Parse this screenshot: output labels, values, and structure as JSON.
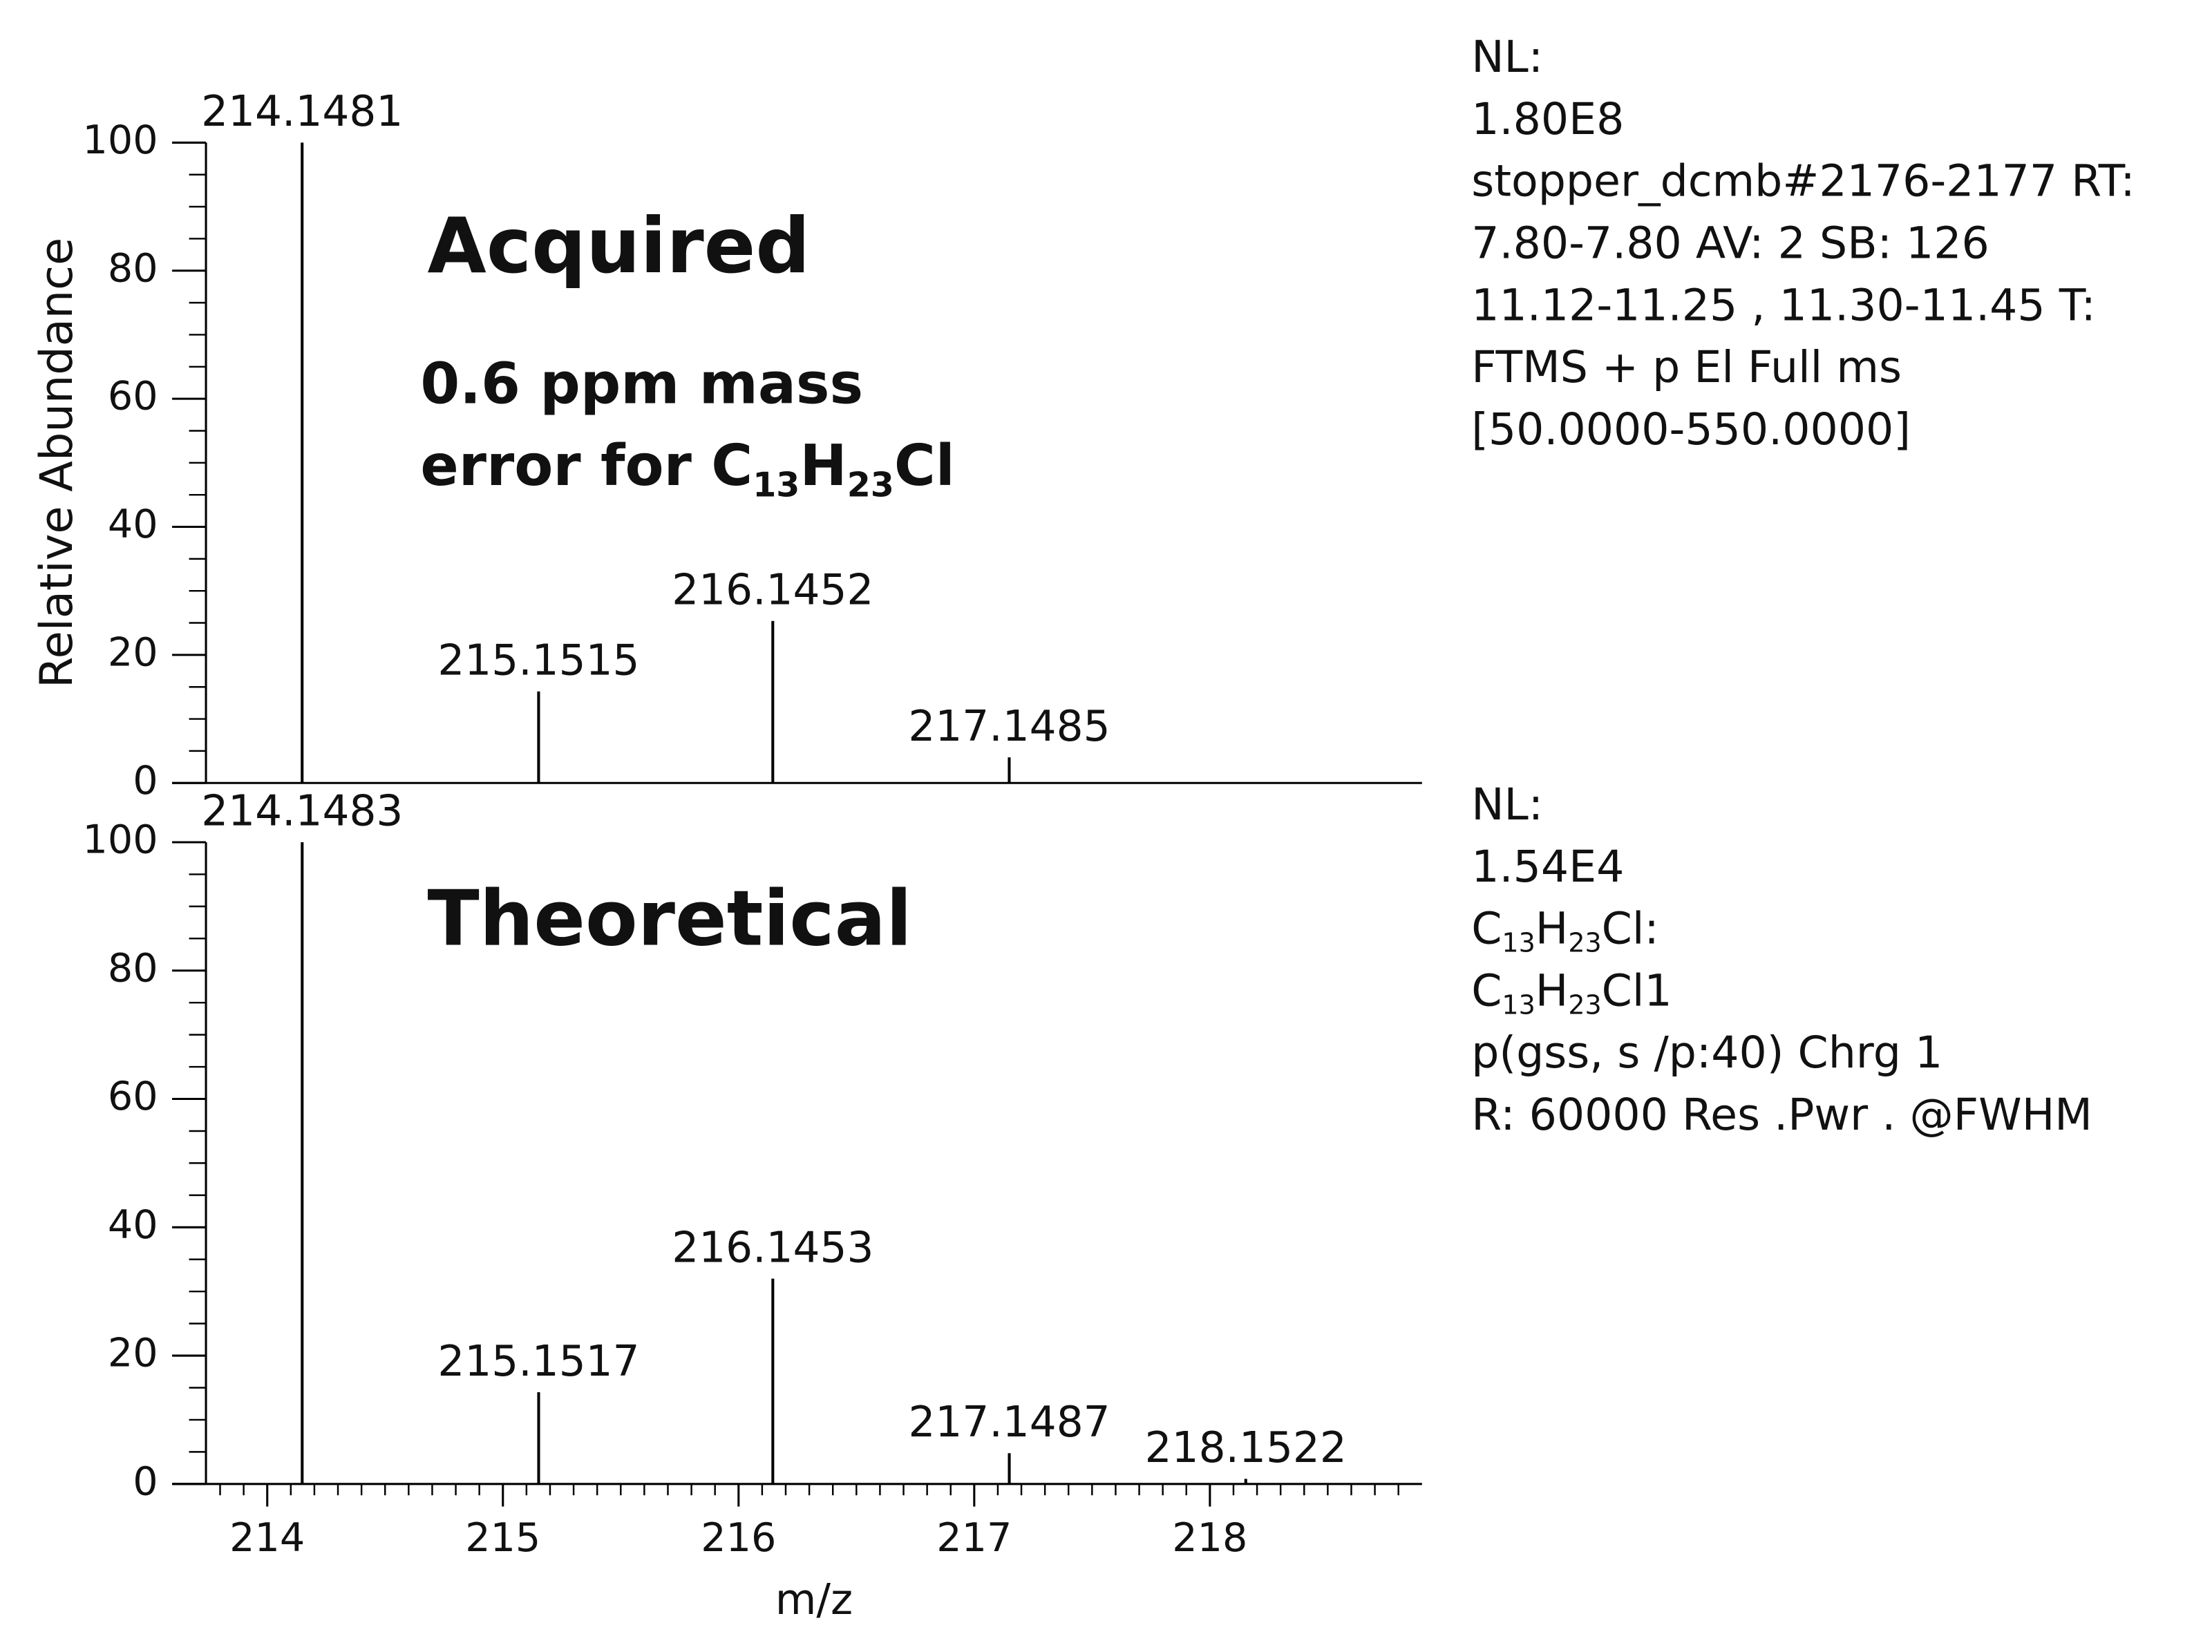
{
  "chart_data": [
    {
      "type": "bar",
      "title": "Acquired",
      "annotation": [
        [
          {
            "text": "0.6 ppm mass"
          }
        ],
        [
          {
            "text": "error for C"
          },
          {
            "sub": "13"
          },
          {
            "text": "H"
          },
          {
            "sub": "23"
          },
          {
            "text": "Cl"
          }
        ]
      ],
      "info": [
        [
          {
            "text": "NL:"
          }
        ],
        [
          {
            "text": "1.80E8"
          }
        ],
        [
          {
            "text": "stopper_dcmb#2176-2177 RT:"
          }
        ],
        [
          {
            "text": "7.80-7.80 AV: 2 SB: 126"
          }
        ],
        [
          {
            "text": "11.12-11.25 , 11.30-11.45 T:"
          }
        ],
        [
          {
            "text": "FTMS + p El Full ms"
          }
        ],
        [
          {
            "text": "[50.0000-550.0000]"
          }
        ]
      ],
      "ylabel": "Relative Abundance",
      "x": [
        214.1481,
        215.1515,
        216.1452,
        217.1485
      ],
      "values": [
        100,
        14.3,
        25.3,
        4
      ],
      "color": "#000000",
      "xlim": [
        213.74,
        218.9
      ],
      "ylim": [
        0,
        100
      ],
      "yticks": [
        0,
        20,
        40,
        60,
        80,
        100
      ],
      "yminorticks": [
        5,
        10,
        15,
        25,
        30,
        35,
        45,
        50,
        55,
        65,
        70,
        75,
        85,
        90,
        95
      ]
    },
    {
      "type": "bar",
      "title": "Theoretical",
      "info": [
        [
          {
            "text": "NL:"
          }
        ],
        [
          {
            "text": "1.54E4"
          }
        ],
        [
          {
            "text": "C"
          },
          {
            "sub": "13"
          },
          {
            "text": "H"
          },
          {
            "sub": "23"
          },
          {
            "text": "Cl:"
          }
        ],
        [
          {
            "text": "C"
          },
          {
            "sub": "13"
          },
          {
            "text": "H"
          },
          {
            "sub": "23"
          },
          {
            "text": "Cl1"
          }
        ],
        [
          {
            "text": "p(gss, s /p:40) Chrg 1"
          }
        ],
        [
          {
            "text": "R: 60000 Res .Pwr . @FWHM"
          }
        ]
      ],
      "xlabel": "m/z",
      "x": [
        214.1483,
        215.1517,
        216.1453,
        217.1487,
        218.1522
      ],
      "values": [
        100,
        14.3,
        32,
        4.8,
        0.8
      ],
      "color": "#000000",
      "xlim": [
        213.74,
        218.9
      ],
      "ylim": [
        0,
        100
      ],
      "xticks": [
        214,
        215,
        216,
        217,
        218
      ],
      "xminorticks": [
        213.8,
        213.9,
        214.1,
        214.2,
        214.3,
        214.4,
        214.5,
        214.6,
        214.7,
        214.8,
        214.9,
        215.1,
        215.2,
        215.3,
        215.4,
        215.5,
        215.6,
        215.7,
        215.8,
        215.9,
        216.1,
        216.2,
        216.3,
        216.4,
        216.5,
        216.6,
        216.7,
        216.8,
        216.9,
        217.1,
        217.2,
        217.3,
        217.4,
        217.5,
        217.6,
        217.7,
        217.8,
        217.9,
        218.1,
        218.2,
        218.3,
        218.4,
        218.5,
        218.6,
        218.7,
        218.8
      ],
      "yticks": [
        0,
        20,
        40,
        60,
        80,
        100
      ],
      "yminorticks": [
        5,
        10,
        15,
        25,
        30,
        35,
        45,
        50,
        55,
        65,
        70,
        75,
        85,
        90,
        95
      ]
    }
  ]
}
